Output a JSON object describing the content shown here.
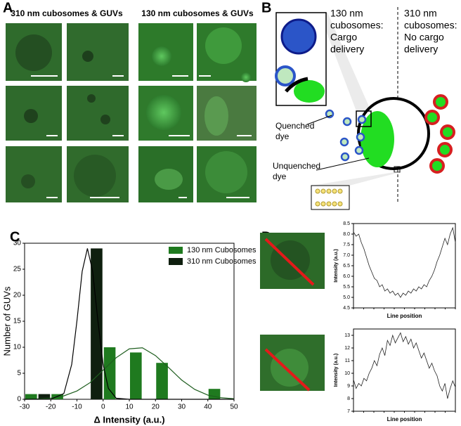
{
  "figure": {
    "panel_labels": [
      "A",
      "B",
      "C",
      "D"
    ],
    "a_left_title": "310 nm cubosomes & GUVs",
    "a_right_title": "130 nm cubosomes & GUVs",
    "b_left_lines": [
      "130 nm",
      "cubosomes:",
      "Cargo",
      "delivery"
    ],
    "b_right_lines": [
      "310 nm",
      "cubosomes:",
      "No cargo",
      "delivery"
    ],
    "b_quenched": [
      "Quenched",
      "dye"
    ],
    "b_unquenched": [
      "Unquenched",
      "dye"
    ]
  },
  "chart_data": [
    {
      "type": "histogram",
      "xlabel": "Δ Intensity  (a.u.)",
      "ylabel": "Number of GUVs",
      "bins": [
        -30,
        -25,
        -20,
        -15,
        -10,
        -5,
        0,
        5,
        10,
        15,
        20,
        25,
        30,
        35,
        40,
        45
      ],
      "series": [
        {
          "name": "130 nm Cubosomes",
          "color": "#1f7a1f",
          "values": [
            1,
            0,
            1,
            0,
            0,
            0,
            10,
            0,
            9,
            0,
            7,
            0,
            0,
            0,
            2
          ],
          "fit_x": [
            -30,
            -25,
            -20,
            -15,
            -10,
            -5,
            0,
            5,
            10,
            15,
            20,
            25,
            30,
            35,
            40,
            45,
            50
          ],
          "fit_y": [
            0,
            0.07,
            0.23,
            0.66,
            1.6,
            3.2,
            5.6,
            8.0,
            9.7,
            9.9,
            8.4,
            6.1,
            3.7,
            1.9,
            0.8,
            0.3,
            0.1
          ],
          "fit_color": "#1f5e1f"
        },
        {
          "name": "310 nm Cubosomes",
          "color": "#0f1f0f",
          "values": [
            0,
            1,
            0,
            0,
            0,
            29,
            0,
            0,
            0,
            0,
            0,
            0,
            0,
            0,
            0
          ],
          "fit_x": [
            -30,
            -20,
            -15,
            -12,
            -10,
            -8,
            -6,
            -4,
            -2,
            0,
            2,
            5,
            10,
            50
          ],
          "fit_y": [
            0,
            0.01,
            1.1,
            6.7,
            15.1,
            24.6,
            29,
            24.6,
            15.1,
            6.7,
            2.1,
            0.2,
            0,
            0
          ],
          "fit_color": "#000000"
        }
      ],
      "xlim": [
        -30,
        50
      ],
      "xticks": [
        -30,
        -20,
        -10,
        0,
        10,
        20,
        30,
        40,
        50
      ],
      "ylim": [
        0,
        30
      ],
      "yticks": [
        0,
        5,
        10,
        15,
        20,
        25,
        30
      ]
    },
    {
      "type": "line",
      "xlabel": "Line position",
      "ylabel": "Intensity (a.u.)",
      "color": "#222222",
      "values": [
        8.1,
        7.9,
        8.0,
        7.6,
        7.3,
        6.9,
        6.5,
        6.2,
        5.9,
        5.8,
        5.5,
        5.6,
        5.3,
        5.4,
        5.2,
        5.3,
        5.1,
        5.2,
        5.0,
        5.2,
        5.1,
        5.3,
        5.2,
        5.4,
        5.3,
        5.5,
        5.4,
        5.6,
        5.5,
        5.8,
        6.0,
        6.3,
        6.7,
        7.0,
        7.4,
        7.8,
        7.5,
        8.0,
        8.3,
        7.6
      ],
      "ylim": [
        4.5,
        8.5
      ],
      "yticks": [
        4.5,
        {
          "value": 5,
          "label": "5.0"
        },
        5.5,
        {
          "value": 6,
          "label": "6.0"
        },
        6.5,
        {
          "value": 7,
          "label": "7.0"
        },
        7.5,
        {
          "value": 8,
          "label": "8.0"
        },
        8.5
      ]
    },
    {
      "type": "line",
      "xlabel": "Line position",
      "ylabel": "Intensity (a.u.)",
      "color": "#222222",
      "values": [
        9.5,
        8.8,
        9.2,
        9.0,
        9.6,
        9.4,
        10.0,
        10.4,
        11.0,
        10.6,
        11.5,
        12.0,
        11.4,
        12.6,
        12.2,
        13.0,
        12.4,
        12.8,
        13.2,
        12.5,
        12.9,
        12.3,
        12.7,
        12.0,
        12.4,
        11.8,
        11.2,
        11.6,
        11.0,
        10.4,
        10.8,
        10.2,
        9.8,
        9.0,
        8.6,
        9.2,
        8.0,
        8.8,
        9.4,
        8.9
      ],
      "ylim": [
        7,
        13.5
      ],
      "yticks": [
        7,
        8,
        9,
        10,
        11,
        12,
        13
      ]
    }
  ]
}
